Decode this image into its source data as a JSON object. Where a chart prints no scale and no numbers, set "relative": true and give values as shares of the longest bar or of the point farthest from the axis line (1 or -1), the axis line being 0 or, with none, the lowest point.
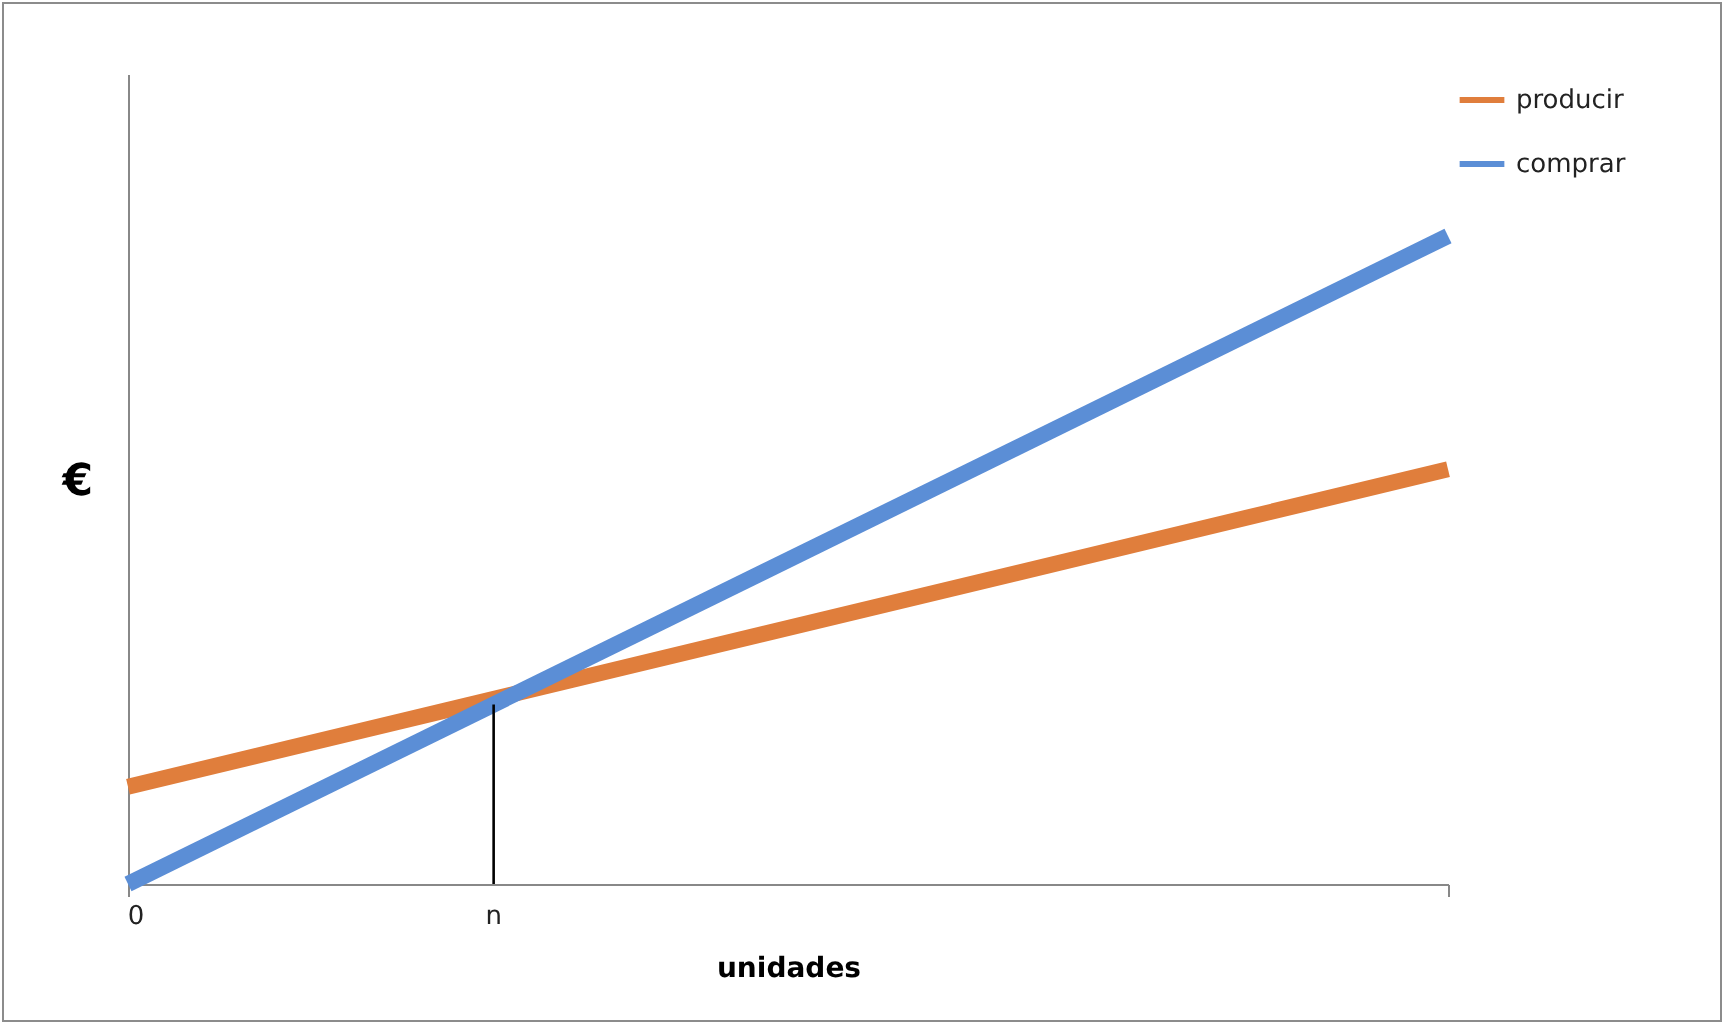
{
  "chart_data": {
    "type": "line",
    "relative": true,
    "xlabel": "unidades",
    "ylabel": "€",
    "categories": [
      null,
      null
    ],
    "series": [
      {
        "name": "producir",
        "color": "#e07e3c",
        "values": [
          0.15,
          0.64
        ]
      },
      {
        "name": "comprar",
        "color": "#5b8ed6",
        "values": [
          0,
          1
        ]
      }
    ],
    "annotations": [
      "0",
      "n"
    ],
    "legend": "right",
    "grid": false,
    "marker": "none",
    "line_style": "solid"
  }
}
